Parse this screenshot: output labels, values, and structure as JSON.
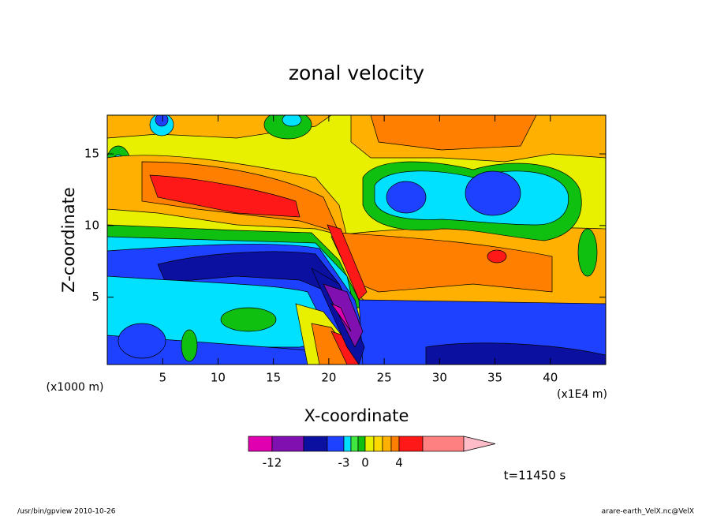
{
  "chart_data": {
    "type": "contour",
    "title": "zonal velocity",
    "x_label": "X-coordinate",
    "y_label": "Z-coordinate",
    "x_unit": "(x1E4 m)",
    "y_unit": "(x1000 m)",
    "xlim": [
      0,
      45
    ],
    "ylim": [
      0.3,
      17.7
    ],
    "xticks": [
      5,
      10,
      15,
      20,
      25,
      30,
      35,
      40
    ],
    "yticks": [
      5,
      10,
      15
    ],
    "colorbar": {
      "levels": [
        -12,
        -9,
        -6,
        -3,
        -2,
        -1,
        0,
        1,
        2,
        3,
        4,
        8
      ],
      "colors": [
        "#e000b0",
        "#8010b0",
        "#0c10a0",
        "#1e40ff",
        "#00e0ff",
        "#40e840",
        "#10c010",
        "#e8f000",
        "#ffd800",
        "#ffb000",
        "#ff8000",
        "#ff1818",
        "#ff8080",
        "#ffbcc8"
      ],
      "ticks": [
        -12,
        -3,
        0,
        4
      ]
    },
    "annotation": "t=11450 s"
  },
  "footer": {
    "left": "/usr/bin/gpview  2010-10-26",
    "right": "arare-earth_VelX.nc@VelX"
  }
}
